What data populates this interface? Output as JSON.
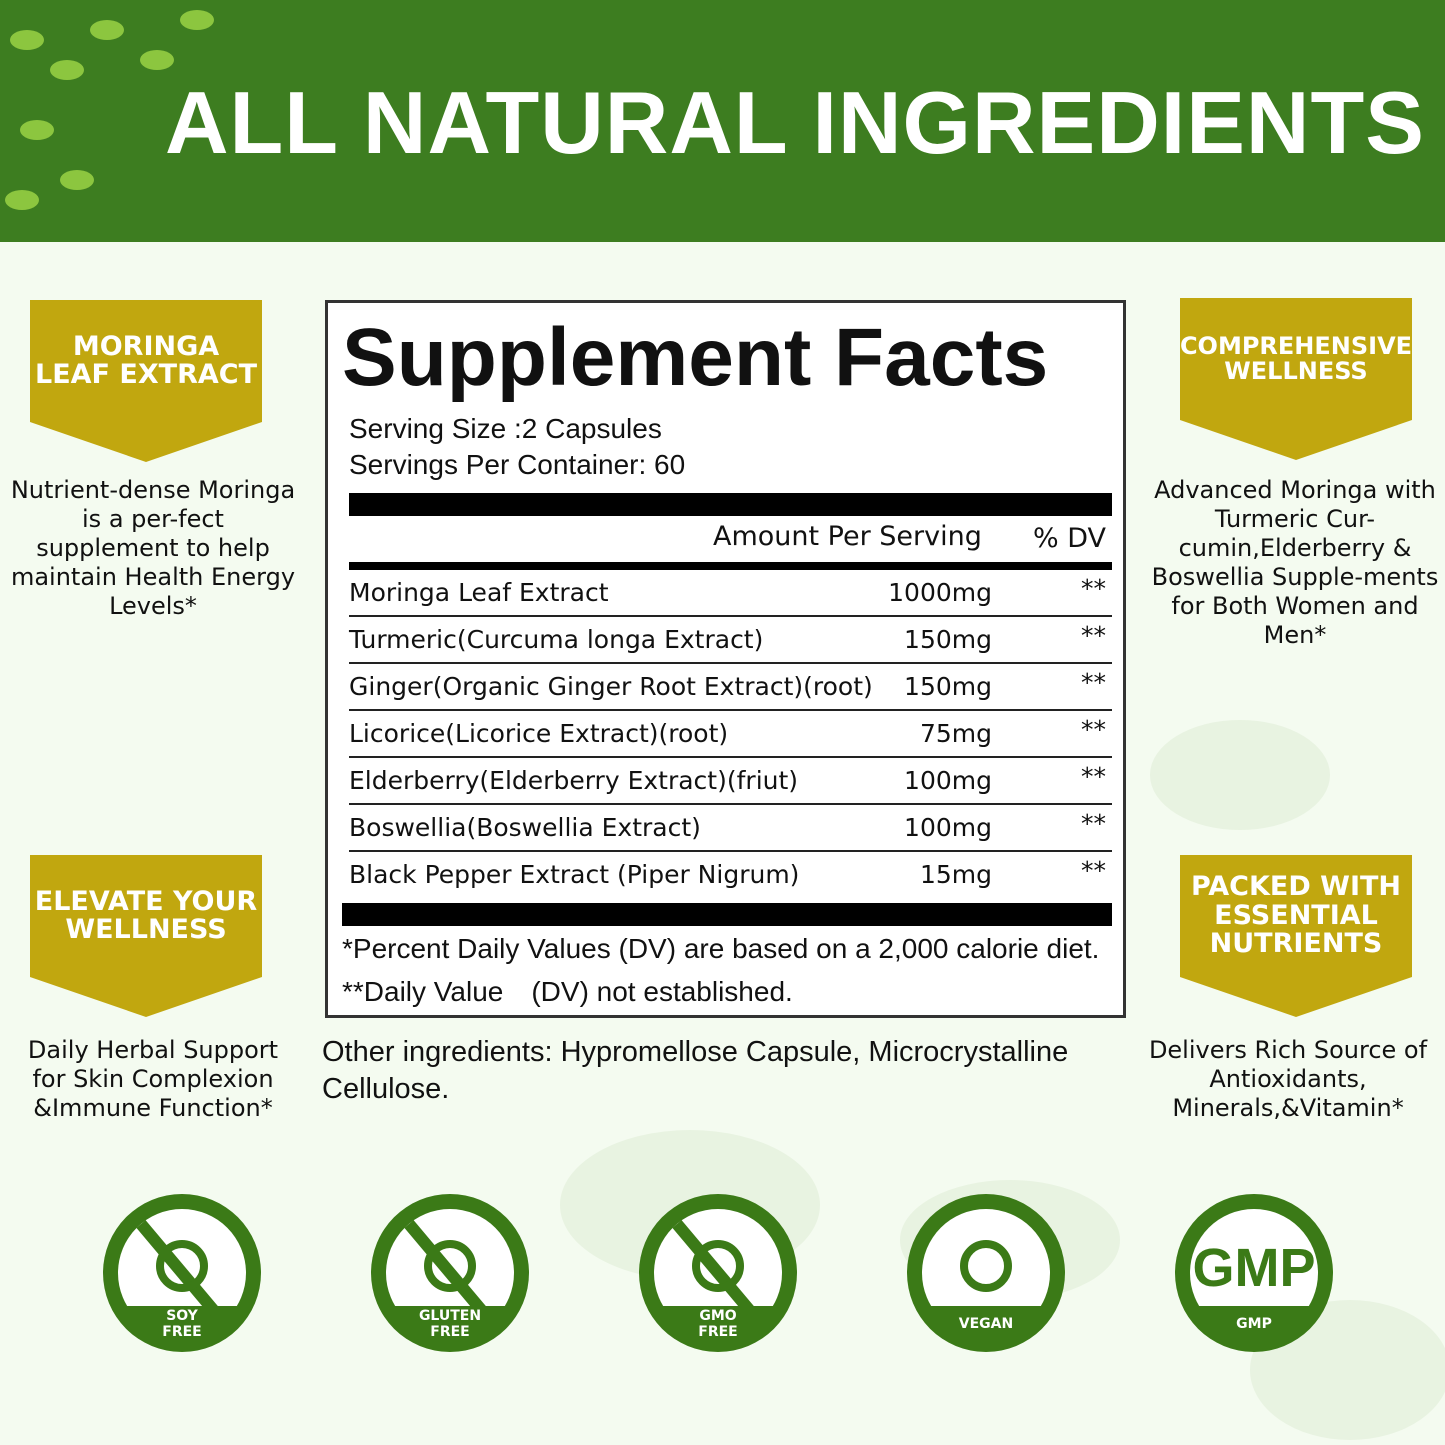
{
  "header": {
    "title": "ALL NATURAL INGREDIENTS"
  },
  "colors": {
    "header_green": "#3d7d20",
    "badge_gold": "#c1a70f",
    "icon_green": "#3b7a17"
  },
  "features": [
    {
      "title": "MORINGA LEAF EXTRACT",
      "lines": [
        "MORINGA",
        "LEAF EXTRACT"
      ],
      "desc": "Nutrient-dense Moringa is a per-fect supplement to help maintain Health Energy Levels*"
    },
    {
      "title": "COMPREHENSIVE WELLNESS",
      "lines": [
        "COMPREHENSIVE",
        "WELLNESS"
      ],
      "desc": "Advanced Moringa with Turmeric Cur-cumin,Elderberry & Boswellia Supple-ments for Both Women and Men*"
    },
    {
      "title": "ELEVATE YOUR WELLNESS",
      "lines": [
        "ELEVATE YOUR",
        "WELLNESS"
      ],
      "desc": "Daily Herbal Support for Skin Complexion &Immune Function*"
    },
    {
      "title": "PACKED WITH ESSENTIAL NUTRIENTS",
      "lines": [
        "PACKED WITH",
        "ESSENTIAL",
        "NUTRIENTS"
      ],
      "desc": "Delivers Rich Source of Antioxidants, Minerals,&Vitamin*"
    }
  ],
  "facts": {
    "title": "Supplement Facts",
    "serving_size": "Serving Size :2 Capsules",
    "servings_per_container": "Servings Per Container: 60",
    "col_amount": "Amount Per Serving",
    "col_dv": "% DV",
    "rows": [
      {
        "name": "Moringa Leaf Extract",
        "amount": "1000mg",
        "dv": "**"
      },
      {
        "name": "Turmeric(Curcuma longa  Extract)",
        "amount": "150mg",
        "dv": "**"
      },
      {
        "name": "Ginger(Organic Ginger Root Extract)(root)",
        "amount": "150mg",
        "dv": "**"
      },
      {
        "name": "Licorice(Licorice Extract)(root)",
        "amount": "75mg",
        "dv": "**"
      },
      {
        "name": "Elderberry(Elderberry Extract)(friut)",
        "amount": "100mg",
        "dv": "**"
      },
      {
        "name": "Boswellia(Boswellia Extract)",
        "amount": "100mg",
        "dv": "**"
      },
      {
        "name": "Black Pepper Extract (Piper Nigrum)",
        "amount": "15mg",
        "dv": "**"
      }
    ],
    "footnote1": "*Percent Daily Values (DV) are based on a 2,000 calorie diet.",
    "footnote2": "**Daily Value　(DV) not established."
  },
  "other_ingredients": "Other ingredients: Hypromellose Capsule,  Microcrystalline Cellulose.",
  "icons": [
    {
      "name": "soy-free-icon",
      "l1": "SOY",
      "l2": "FREE"
    },
    {
      "name": "gluten-free-icon",
      "l1": "GLUTEN",
      "l2": "FREE"
    },
    {
      "name": "gmo-free-icon",
      "l1": "GMO",
      "l2": "FREE"
    },
    {
      "name": "vegan-icon",
      "l1": "VEGAN",
      "l2": ""
    },
    {
      "name": "gmp-icon",
      "l1": "GMP",
      "l2": "",
      "logo": "GMP"
    }
  ]
}
